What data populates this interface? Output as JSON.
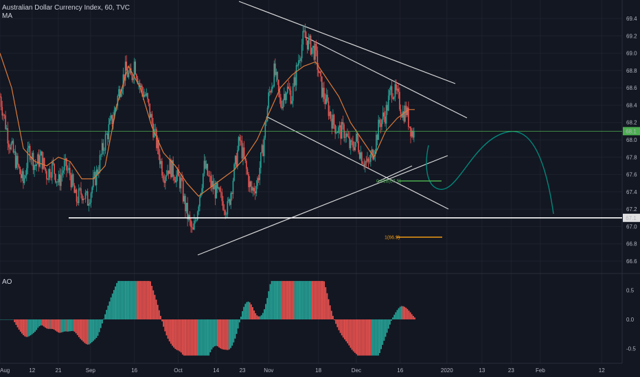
{
  "header": {
    "symbol_line": "Australian Dollar Currency Index, 60, TVC",
    "indicator": "MA",
    "oscillator": "AO"
  },
  "chart_data": {
    "type": "line",
    "title": "Australian Dollar Currency Index, 60, TVC",
    "price_axis": {
      "ticks": [
        66.6,
        66.8,
        67.0,
        67.2,
        67.4,
        67.6,
        67.8,
        68.0,
        68.2,
        68.4,
        68.6,
        68.8,
        69.0,
        69.2,
        69.4
      ],
      "ylim": [
        66.45,
        69.55
      ]
    },
    "time_axis": {
      "labels": [
        "Aug",
        "12",
        "21",
        "Sep",
        "16",
        "Oct",
        "14",
        "23",
        "Nov",
        "18",
        "Dec",
        "16",
        "2020",
        "13",
        "23",
        "Feb",
        "12"
      ],
      "label_days": [
        0,
        11,
        20,
        31,
        46,
        61,
        74,
        83,
        92,
        109,
        122,
        137,
        153,
        165,
        175,
        185,
        206
      ],
      "xlim": [
        0,
        213
      ]
    },
    "price_series": {
      "name": "Australian Dollar Currency Index",
      "x": [
        0,
        3,
        6,
        8,
        10,
        12,
        14,
        16,
        18,
        20,
        22,
        24,
        26,
        28,
        30,
        33,
        36,
        39,
        41,
        43,
        45,
        46,
        48,
        50,
        52,
        54,
        56,
        58,
        60,
        62,
        63,
        64,
        66,
        68,
        70,
        72,
        74,
        76,
        78,
        80,
        82,
        84,
        86,
        88,
        90,
        92,
        94,
        96,
        98,
        100,
        102,
        104,
        106,
        108,
        110,
        112,
        114,
        116,
        118,
        120,
        122,
        124,
        126,
        128,
        130,
        132,
        134,
        136,
        138,
        139,
        140,
        141,
        142
      ],
      "y": [
        68.5,
        68.0,
        67.7,
        67.5,
        67.9,
        67.7,
        67.8,
        67.6,
        67.7,
        67.5,
        67.7,
        67.6,
        67.3,
        67.4,
        67.3,
        67.6,
        68.0,
        68.3,
        68.6,
        68.8,
        68.7,
        68.9,
        68.6,
        68.5,
        68.2,
        67.9,
        67.6,
        67.7,
        67.6,
        67.5,
        67.3,
        67.15,
        66.9,
        67.3,
        67.7,
        67.5,
        67.4,
        67.3,
        67.2,
        67.6,
        68.0,
        67.7,
        67.4,
        67.5,
        67.9,
        68.5,
        68.8,
        68.4,
        68.6,
        68.5,
        68.9,
        69.2,
        69.1,
        69.0,
        68.6,
        68.4,
        68.2,
        68.1,
        68.1,
        67.9,
        68.0,
        67.8,
        67.7,
        67.9,
        68.2,
        68.3,
        68.6,
        68.5,
        68.3,
        68.35,
        68.2,
        68.1,
        68.05
      ],
      "ohlc_candles": "synthetic-walk-around-series"
    },
    "ma_series": {
      "name": "MA",
      "color": "#e07b39",
      "x": [
        0,
        4,
        8,
        12,
        16,
        20,
        24,
        28,
        32,
        36,
        40,
        44,
        48,
        52,
        56,
        60,
        64,
        68,
        72,
        76,
        80,
        84,
        88,
        92,
        96,
        100,
        104,
        108,
        112,
        116,
        120,
        124,
        128,
        132,
        136,
        140,
        142
      ],
      "y": [
        69.0,
        68.6,
        67.9,
        67.75,
        67.7,
        67.8,
        67.75,
        67.55,
        67.55,
        67.7,
        68.4,
        68.85,
        68.6,
        68.15,
        67.85,
        67.7,
        67.5,
        67.35,
        67.45,
        67.55,
        67.65,
        67.8,
        68.0,
        68.3,
        68.6,
        68.75,
        68.85,
        68.9,
        68.7,
        68.5,
        68.2,
        68.0,
        67.8,
        68.1,
        68.25,
        68.35,
        68.35
      ]
    },
    "ao_series": {
      "name": "AO",
      "axis_ticks": [
        -0.5,
        0.0,
        0.5
      ],
      "ylim": [
        -0.66,
        0.7
      ],
      "up_color": "#26a69a",
      "down_color": "#ef5350"
    },
    "horizontal_levels": [
      {
        "value": 68.1,
        "label": "68.1",
        "color": "#4caf50"
      },
      {
        "value": 67.1,
        "label": "67.1",
        "color": "#ffffff"
      }
    ],
    "fib_labels": [
      {
        "text": "0.618(67.5)",
        "color": "#4caf50"
      },
      {
        "text": "1(66.9)",
        "color": "#f39c12"
      }
    ],
    "legend": "none",
    "grid": true
  }
}
